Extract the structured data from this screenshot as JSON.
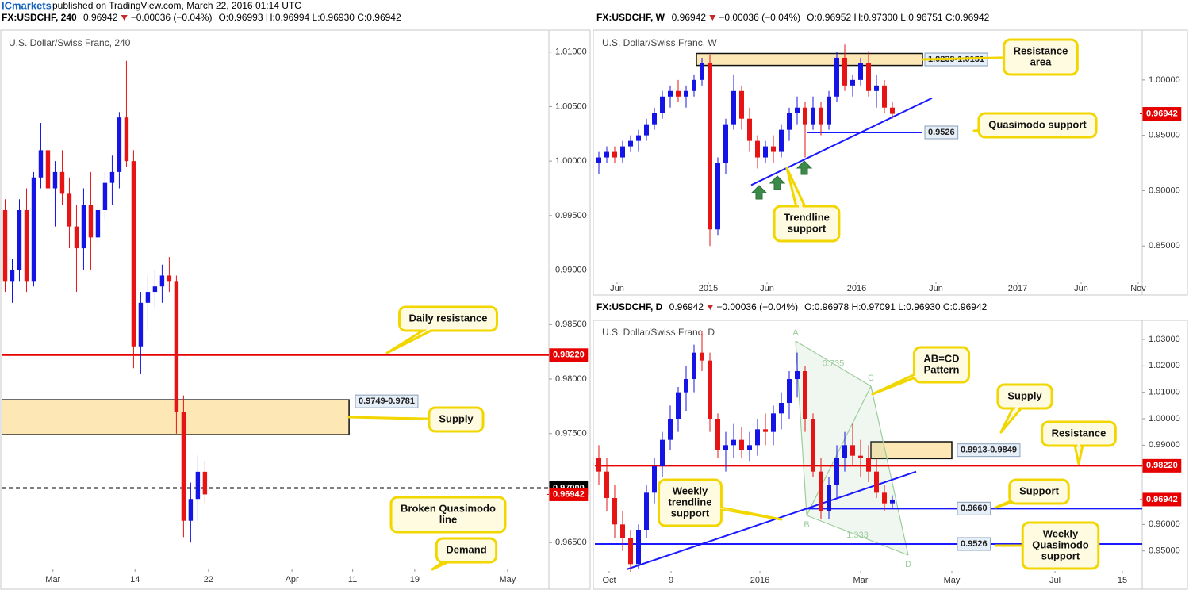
{
  "page": {
    "publisher": "ICmarkets",
    "published": "published on TradingView.com, March 22, 2016 01:14 UTC"
  },
  "chart_data": [
    {
      "type": "candlestick",
      "title": "U.S. Dollar/Swiss Franc, 240",
      "symbol": "FX:USDCHF, 240",
      "last": 0.96942,
      "change": "−0.00036 (−0.04%)",
      "ohlc": "O:0.96993 H:0.96994 L:0.96930 C:0.96942",
      "up_color": "#1414e6",
      "down_color": "#e61414",
      "open": [
        0.9955,
        0.989,
        0.99,
        0.9955,
        0.989,
        0.9985,
        1.001,
        0.9975,
        0.999,
        0.997,
        0.994,
        0.992,
        0.996,
        0.993,
        0.9955,
        0.998,
        0.999,
        1.004,
        1.0,
        0.983,
        0.987,
        0.988,
        0.9885,
        0.9895,
        0.989,
        0.977,
        0.967,
        0.969,
        0.9715
      ],
      "high": [
        0.9965,
        0.991,
        0.9965,
        0.9975,
        0.999,
        1.0035,
        1.0025,
        1.0,
        1.001,
        0.9985,
        0.996,
        0.9975,
        0.999,
        0.996,
        0.999,
        1.0005,
        1.0045,
        1.0092,
        1.001,
        0.988,
        0.9895,
        0.99,
        0.9905,
        0.9912,
        0.9895,
        0.9785,
        0.9705,
        0.973,
        0.9725
      ],
      "low": [
        0.988,
        0.987,
        0.989,
        0.988,
        0.9885,
        0.9975,
        0.9965,
        0.994,
        0.996,
        0.992,
        0.988,
        0.99,
        0.99,
        0.9925,
        0.9945,
        0.996,
        0.9975,
        0.9995,
        0.981,
        0.9805,
        0.9845,
        0.9865,
        0.987,
        0.988,
        0.975,
        0.9655,
        0.965,
        0.967,
        0.9685
      ],
      "close": [
        0.989,
        0.99,
        0.9955,
        0.989,
        0.9985,
        1.001,
        0.9975,
        0.999,
        0.997,
        0.994,
        0.992,
        0.996,
        0.993,
        0.9955,
        0.998,
        0.999,
        1.004,
        1.0,
        0.983,
        0.987,
        0.988,
        0.9885,
        0.9895,
        0.989,
        0.977,
        0.967,
        0.969,
        0.9715,
        0.96942
      ],
      "xlim": [
        0,
        76.7
      ],
      "ylim": [
        0.96254,
        1.01187
      ],
      "xticks": [
        {
          "value": 7.2,
          "label": "Mar"
        },
        {
          "value": 18.7,
          "label": "14"
        },
        {
          "value": 29,
          "label": "22"
        },
        {
          "value": 40.7,
          "label": "Apr"
        },
        {
          "value": 49.2,
          "label": "11"
        },
        {
          "value": 57.9,
          "label": "19"
        },
        {
          "value": 70.9,
          "label": "May"
        }
      ],
      "yticks": [
        {
          "value": 1.01,
          "label": "1.01000"
        },
        {
          "value": 1.005,
          "label": "1.00500"
        },
        {
          "value": 1.0,
          "label": "1.00000"
        },
        {
          "value": 0.995,
          "label": "0.99500"
        },
        {
          "value": 0.99,
          "label": "0.99000"
        },
        {
          "value": 0.985,
          "label": "0.98500"
        },
        {
          "value": 0.98,
          "label": "0.98000"
        },
        {
          "value": 0.975,
          "label": "0.97500"
        },
        {
          "value": 0.965,
          "label": "0.96500"
        }
      ],
      "zones": [
        {
          "low": 0.9749,
          "high": 0.9781,
          "label": "0.9749-0.9781",
          "from": 0,
          "to": 48.7
        }
      ],
      "hlines": [
        {
          "value": 0.9822,
          "label": "0.98220",
          "color": "#e60000",
          "style": "solid",
          "label_at": "axis",
          "from": 0,
          "to": 76.7
        },
        {
          "value": 0.97,
          "label": "0.97000",
          "color": "#000000",
          "style": "dashed",
          "label_at": "axis",
          "from": 0,
          "to": 76.7
        }
      ],
      "last_price": {
        "value": 0.96942,
        "label": "0.96942",
        "color": "#e60000"
      },
      "callouts": [
        {
          "lines": [
            "Daily resistance"
          ]
        },
        {
          "lines": [
            "Supply"
          ]
        },
        {
          "lines": [
            "Broken Quasimodo",
            "line"
          ]
        },
        {
          "lines": [
            "Demand"
          ]
        }
      ]
    },
    {
      "type": "candlestick",
      "title": "U.S. Dollar/Swiss Franc, W",
      "symbol": "FX:USDCHF, W",
      "last": 0.96942,
      "change": "−0.00036 (−0.04%)",
      "ohlc": "O:0.96952 H:0.97300 L:0.96751 C:0.96942",
      "up_color": "#1414e6",
      "down_color": "#e61414",
      "open": [
        0.925,
        0.93,
        0.935,
        0.93,
        0.94,
        0.945,
        0.95,
        0.96,
        0.97,
        0.985,
        0.99,
        0.985,
        0.99,
        1.0,
        1.015,
        0.865,
        0.925,
        0.96,
        0.99,
        0.965,
        0.945,
        0.93,
        0.94,
        0.935,
        0.955,
        0.97,
        0.975,
        0.96,
        0.975,
        0.96,
        0.985,
        1.02,
        0.995,
        1.0,
        1.015,
        0.99,
        0.995,
        0.975
      ],
      "high": [
        0.935,
        0.94,
        0.94,
        0.945,
        0.95,
        0.955,
        0.965,
        0.975,
        0.99,
        0.995,
        1.0,
        0.995,
        1.005,
        1.02,
        1.023,
        0.93,
        0.965,
        1.005,
        0.995,
        0.975,
        0.95,
        0.945,
        0.95,
        0.96,
        0.975,
        0.985,
        0.98,
        0.985,
        0.98,
        0.99,
        1.025,
        1.032,
        1.005,
        1.02,
        1.026,
        1.005,
        1.0,
        0.98
      ],
      "low": [
        0.915,
        0.925,
        0.925,
        0.925,
        0.935,
        0.935,
        0.945,
        0.955,
        0.965,
        0.975,
        0.98,
        0.975,
        0.985,
        0.995,
        0.85,
        0.86,
        0.915,
        0.955,
        0.955,
        0.935,
        0.92,
        0.925,
        0.925,
        0.93,
        0.945,
        0.96,
        0.93,
        0.955,
        0.95,
        0.955,
        0.98,
        0.99,
        0.985,
        0.995,
        0.985,
        0.975,
        0.97,
        0.965
      ],
      "close": [
        0.93,
        0.935,
        0.93,
        0.94,
        0.945,
        0.95,
        0.96,
        0.97,
        0.985,
        0.99,
        0.985,
        0.99,
        1.0,
        1.015,
        0.865,
        0.925,
        0.96,
        0.99,
        0.965,
        0.945,
        0.93,
        0.94,
        0.935,
        0.955,
        0.97,
        0.975,
        0.96,
        0.975,
        0.96,
        0.985,
        1.02,
        0.995,
        1.0,
        1.015,
        0.99,
        0.995,
        0.975,
        0.96942
      ],
      "xlim": [
        0,
        69
      ],
      "ylim": [
        0.8179,
        1.0436
      ],
      "xticks": [
        {
          "value": 2.8,
          "label": "Jun"
        },
        {
          "value": 14.3,
          "label": "2015"
        },
        {
          "value": 21.7,
          "label": "Jun"
        },
        {
          "value": 33,
          "label": "2016"
        },
        {
          "value": 43,
          "label": "Jun"
        },
        {
          "value": 53.3,
          "label": "2017"
        },
        {
          "value": 61.3,
          "label": "Jun"
        },
        {
          "value": 68.5,
          "label": "Nov"
        }
      ],
      "yticks": [
        {
          "value": 1.0,
          "label": "1.00000"
        },
        {
          "value": 0.95,
          "label": "0.95000"
        },
        {
          "value": 0.9,
          "label": "0.90000"
        },
        {
          "value": 0.85,
          "label": "0.85000"
        }
      ],
      "zones": [
        {
          "low": 1.0131,
          "high": 1.0239,
          "label": "1.0239-1.0131",
          "from": 12.8,
          "to": 41.3
        }
      ],
      "hlines": [
        {
          "value": 0.9526,
          "label": "0.9526",
          "color": "#1a1aff",
          "style": "solid",
          "label_at": "line",
          "from": 26.8,
          "to": 41.3
        }
      ],
      "trendlines": [
        {
          "x": [
            19.7,
            42.5
          ],
          "y": [
            0.905,
            0.9836
          ],
          "color": "#1a1aff"
        }
      ],
      "last_price": {
        "value": 0.96942,
        "label": "0.96942",
        "color": "#e60000"
      },
      "callouts": [
        {
          "lines": [
            "Resistance",
            "area"
          ]
        },
        {
          "lines": [
            "Quasimodo support"
          ]
        },
        {
          "lines": [
            "Trendline",
            "support"
          ]
        }
      ]
    },
    {
      "type": "candlestick",
      "title": "U.S. Dollar/Swiss Franc, D",
      "symbol": "FX:USDCHF, D",
      "last": 0.96942,
      "change": "−0.00036 (−0.04%)",
      "ohlc": "O:0.96978 H:0.97091 L:0.96930 C:0.96942",
      "up_color": "#1414e6",
      "down_color": "#e61414",
      "open": [
        0.985,
        0.98,
        0.97,
        0.96,
        0.955,
        0.945,
        0.958,
        0.972,
        0.982,
        0.992,
        1.0,
        1.01,
        1.015,
        1.025,
        1.022,
        1.0,
        0.988,
        0.99,
        0.992,
        0.988,
        0.99,
        0.996,
        0.995,
        1.002,
        1.006,
        1.015,
        1.018,
        1.0,
        0.98,
        0.965,
        0.975,
        0.985,
        0.99,
        0.986,
        0.985,
        0.98,
        0.972,
        0.968
      ],
      "high": [
        0.99,
        0.985,
        0.975,
        0.965,
        0.958,
        0.96,
        0.975,
        0.985,
        0.995,
        1.005,
        1.012,
        1.02,
        1.028,
        1.033,
        1.025,
        1.002,
        0.995,
        0.998,
        0.997,
        0.995,
        1.0,
        1.002,
        1.005,
        1.01,
        1.018,
        1.025,
        1.02,
        1.002,
        0.985,
        0.978,
        0.99,
        0.995,
        0.998,
        0.992,
        0.99,
        0.985,
        0.975,
        0.971
      ],
      "low": [
        0.975,
        0.965,
        0.955,
        0.95,
        0.941,
        0.943,
        0.955,
        0.968,
        0.978,
        0.988,
        0.995,
        1.003,
        1.01,
        1.018,
        0.995,
        0.985,
        0.98,
        0.985,
        0.985,
        0.984,
        0.986,
        0.99,
        0.99,
        0.996,
        1.0,
        1.008,
        0.995,
        0.978,
        0.962,
        0.962,
        0.97,
        0.98,
        0.982,
        0.978,
        0.976,
        0.97,
        0.965,
        0.966
      ],
      "close": [
        0.98,
        0.97,
        0.96,
        0.955,
        0.945,
        0.958,
        0.972,
        0.982,
        0.992,
        1.0,
        1.01,
        1.015,
        1.025,
        1.022,
        1.0,
        0.988,
        0.99,
        0.992,
        0.988,
        0.99,
        0.996,
        0.995,
        1.002,
        1.006,
        1.015,
        1.018,
        1.0,
        0.98,
        0.965,
        0.975,
        0.985,
        0.99,
        0.986,
        0.985,
        0.98,
        0.972,
        0.968,
        0.96942
      ],
      "xlim": [
        0,
        69
      ],
      "ylim": [
        0.9424,
        1.0369
      ],
      "xticks": [
        {
          "value": 1.8,
          "label": "Oct"
        },
        {
          "value": 9.6,
          "label": "9"
        },
        {
          "value": 20.8,
          "label": "2016"
        },
        {
          "value": 33.5,
          "label": "Mar"
        },
        {
          "value": 45,
          "label": "May"
        },
        {
          "value": 58,
          "label": "Jul"
        },
        {
          "value": 66.5,
          "label": "15"
        }
      ],
      "yticks": [
        {
          "value": 1.03,
          "label": "1.03000"
        },
        {
          "value": 1.02,
          "label": "1.02000"
        },
        {
          "value": 1.01,
          "label": "1.01000"
        },
        {
          "value": 1.0,
          "label": "1.00000"
        },
        {
          "value": 0.99,
          "label": "0.99000"
        },
        {
          "value": 0.96,
          "label": "0.96000"
        },
        {
          "value": 0.95,
          "label": "0.95000"
        }
      ],
      "zones": [
        {
          "low": 0.9849,
          "high": 0.9913,
          "label": "0.9913-0.9849",
          "from": 34.8,
          "to": 45
        }
      ],
      "hlines": [
        {
          "value": 0.9822,
          "label": "0.98220",
          "color": "#e60000",
          "style": "solid",
          "label_at": "axis",
          "from": 0,
          "to": 69
        },
        {
          "value": 0.966,
          "label": "0.9660",
          "color": "#1a1aff",
          "style": "solid",
          "label_at": "line",
          "from": 26.5,
          "to": 69
        },
        {
          "value": 0.9526,
          "label": "0.9526",
          "color": "#1a1aff",
          "style": "solid",
          "label_at": "line",
          "from": 0,
          "to": 69
        }
      ],
      "trendlines": [
        {
          "x": [
            4,
            40.5
          ],
          "y": [
            0.943,
            0.98
          ],
          "color": "#1a1aff"
        }
      ],
      "pattern": {
        "x": [
          25.3,
          26.7,
          34.8,
          39.5
        ],
        "y": [
          1.0294,
          0.9634,
          1.0123,
          0.9484
        ],
        "labels": [
          "A",
          "B",
          "C",
          "D"
        ],
        "ratios": [
          "0.735",
          "1.333"
        ],
        "color": "#9ccc9c"
      },
      "last_price": {
        "value": 0.96942,
        "label": "0.96942",
        "color": "#e60000"
      },
      "callouts": [
        {
          "lines": [
            "AB=CD",
            "Pattern"
          ]
        },
        {
          "lines": [
            "Supply"
          ]
        },
        {
          "lines": [
            "Resistance"
          ]
        },
        {
          "lines": [
            "Support"
          ]
        },
        {
          "lines": [
            "Weekly",
            "trendline",
            "support"
          ]
        },
        {
          "lines": [
            "Weekly",
            "Quasimodo",
            "support"
          ]
        }
      ]
    }
  ]
}
